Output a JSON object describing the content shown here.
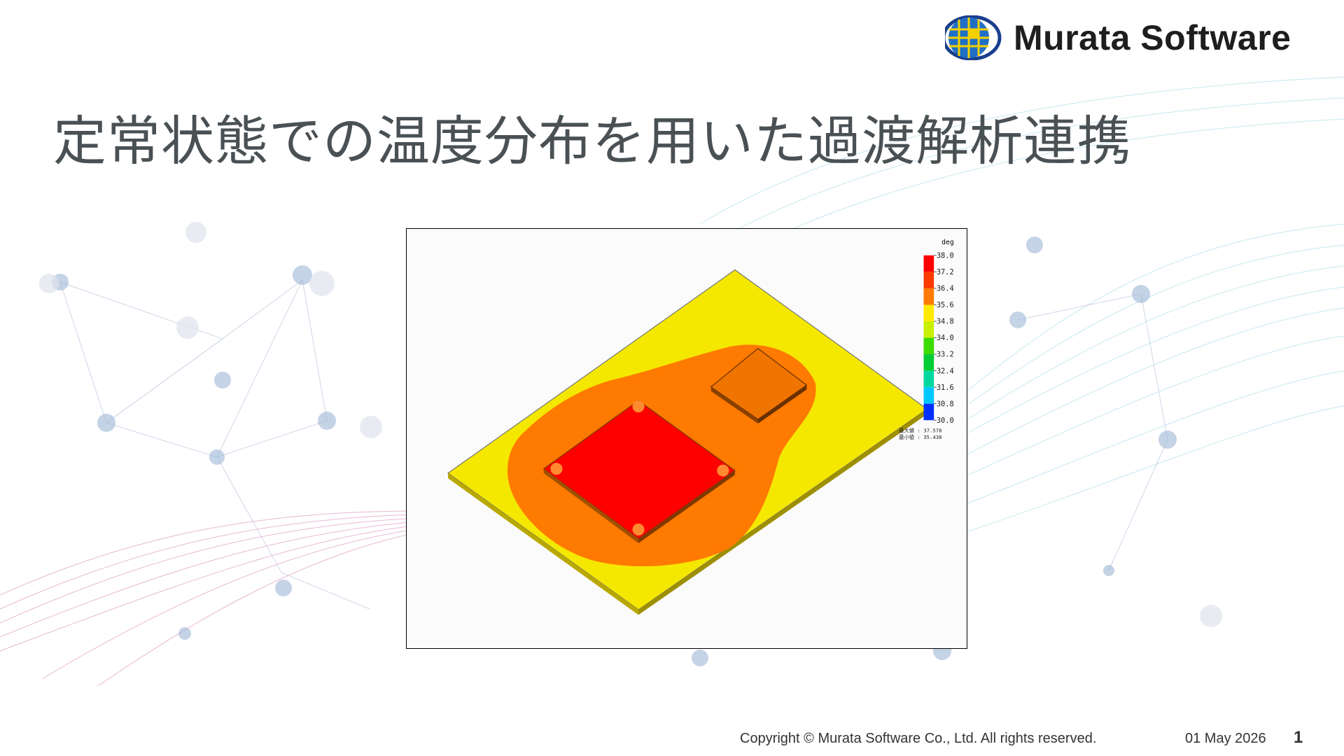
{
  "header": {
    "logo_text": "Murata Software",
    "title": "定常状態での温度分布を用いた過渡解析連携"
  },
  "figure": {
    "legend": {
      "unit": "deg",
      "labels": [
        "38.0",
        "37.2",
        "36.4",
        "35.6",
        "34.8",
        "34.0",
        "33.2",
        "32.4",
        "31.6",
        "30.8",
        "30.0"
      ],
      "colors": [
        "#ff0000",
        "#ff3a00",
        "#ff7a00",
        "#ffea00",
        "#c8f000",
        "#3cdc00",
        "#00cc33",
        "#00d8a0",
        "#00c8ff",
        "#0030ff"
      ],
      "max_label": "最大値 : 37.578",
      "min_label": "最小値 : 35.438"
    }
  },
  "footer": {
    "copyright": "Copyright © Murata Software Co., Ltd. All rights reserved.",
    "date": "01 May 2026",
    "page": "1"
  }
}
